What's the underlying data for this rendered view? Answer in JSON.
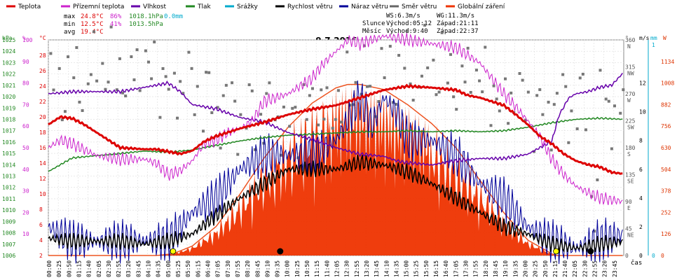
{
  "chart_data": {
    "type": "line",
    "title": "9.7.2016",
    "legend": [
      {
        "name": "Teplota",
        "color": "#dd0000"
      },
      {
        "name": "Přízemní teplota",
        "color": "#cc22cc"
      },
      {
        "name": "Vlhkost",
        "color": "#6600aa"
      },
      {
        "name": "Tlak",
        "color": "#228822"
      },
      {
        "name": "Srážky",
        "color": "#00aacc"
      },
      {
        "name": "Rychlost větru",
        "color": "#000000"
      },
      {
        "name": "Náraz větru",
        "color": "#000099"
      },
      {
        "name": "Směr větru",
        "color": "#666666"
      },
      {
        "name": "Globální záření",
        "color": "#ee3300"
      }
    ],
    "stats": {
      "max": {
        "label": "max",
        "temp": "24.8°C",
        "hum": "86%",
        "press": "1018.1hPa",
        "rain": "0.0mm"
      },
      "min": {
        "label": "min",
        "temp": "12.5°C",
        "hum": "41%",
        "press": "1013.5hPa"
      },
      "avg": {
        "label": "avg",
        "temp": "19.4°C"
      }
    },
    "info": {
      "ws": "WS:6.3m/s",
      "wg": "WG:11.3m/s",
      "slunce_label": "Slunce",
      "slunce_vychod": "Východ:05:12",
      "slunce_zapad": "Západ:21:11",
      "mesic_label": "Měsíc",
      "mesic_vychod": "Východ:9:40",
      "mesic_zapad": "Západ:22:37"
    },
    "axes": {
      "left": [
        {
          "unit": "hPa",
          "color": "#228822",
          "ticks": [
            "1025",
            "1024",
            "1023",
            "1022",
            "1021",
            "1020",
            "1019",
            "1018",
            "1017",
            "1016",
            "1015",
            "1014",
            "1013",
            "1012",
            "1011",
            "1010",
            "1009",
            "1008",
            "1007",
            "1006"
          ],
          "range": [
            1006,
            1025
          ]
        },
        {
          "unit": "%",
          "color": "#cc22cc",
          "ticks": [
            "100",
            "90",
            "80",
            "70",
            "60",
            "50",
            "40",
            "30",
            "20",
            "10"
          ],
          "range": [
            0,
            100
          ]
        },
        {
          "unit": "°C",
          "color": "#dd0000",
          "ticks": [
            "28",
            "26",
            "24",
            "22",
            "20",
            "18",
            "16",
            "14",
            "12",
            "10",
            "8",
            "6",
            "4",
            "2"
          ],
          "range": [
            2,
            30
          ]
        }
      ],
      "right": [
        {
          "unit": "°",
          "color": "#555555",
          "ticks": [
            [
              "360",
              "N"
            ],
            [
              "315",
              "NW"
            ],
            [
              "270",
              "W"
            ],
            [
              "225",
              "SW"
            ],
            [
              "180",
              "S"
            ],
            [
              "135",
              "SE"
            ],
            [
              "90",
              "E"
            ],
            [
              "45",
              "NE"
            ],
            [
              "0",
              ""
            ]
          ],
          "range": [
            0,
            360
          ]
        },
        {
          "unit": "m/s",
          "color": "#000000",
          "ticks": [
            "12",
            "10",
            "8",
            "6",
            "4",
            "2",
            "0"
          ],
          "range": [
            0,
            15
          ]
        },
        {
          "unit": "mm",
          "color": "#00aacc",
          "ticks": [
            "1",
            "0"
          ],
          "range": [
            0,
            1
          ]
        },
        {
          "unit": "W",
          "color": "#dd3300",
          "ticks": [
            "1134",
            "1008",
            "882",
            "756",
            "630",
            "504",
            "378",
            "252",
            "126",
            "0"
          ],
          "range": [
            0,
            1260
          ]
        }
      ],
      "x_label": "čas",
      "x_ticks": [
        "00:00",
        "00:25",
        "00:50",
        "01:15",
        "01:40",
        "02:05",
        "02:30",
        "02:55",
        "03:20",
        "03:45",
        "04:10",
        "04:35",
        "05:00",
        "05:25",
        "05:50",
        "06:15",
        "06:40",
        "07:05",
        "07:30",
        "07:55",
        "08:20",
        "08:45",
        "09:10",
        "09:35",
        "10:00",
        "10:25",
        "10:50",
        "11:15",
        "11:40",
        "12:05",
        "12:30",
        "12:55",
        "13:20",
        "13:45",
        "14:10",
        "14:35",
        "15:00",
        "15:25",
        "15:50",
        "16:15",
        "16:40",
        "17:05",
        "17:30",
        "17:55",
        "18:20",
        "18:45",
        "19:10",
        "19:35",
        "20:00",
        "20:25",
        "20:50",
        "21:15",
        "21:40",
        "22:05",
        "22:30",
        "22:55",
        "23:20",
        "23:45"
      ]
    },
    "series": [
      {
        "name": "Teplota",
        "unit": "°C",
        "x": [
          0,
          0.5,
          1,
          1.5,
          2,
          3,
          4,
          4.5,
          5,
          5.5,
          6,
          6.5,
          7,
          8,
          9,
          10,
          11,
          12,
          13,
          14,
          15,
          16,
          17,
          17.5,
          18,
          18.5,
          19,
          19.5,
          20,
          20.5,
          21,
          21.5,
          22,
          22.5,
          23,
          23.5,
          24
        ],
        "values": [
          19,
          20,
          19.8,
          19,
          18,
          16,
          15.8,
          15.8,
          15.5,
          15.2,
          15.6,
          16.8,
          17.5,
          18.5,
          19.3,
          20.3,
          21,
          21.5,
          22.5,
          23.5,
          24,
          23.8,
          23.5,
          22.8,
          22.5,
          22,
          21.5,
          20.3,
          19,
          17.5,
          16.5,
          15.2,
          14.3,
          13.8,
          13.5,
          12.8,
          12.6
        ]
      },
      {
        "name": "Přízemní teplota",
        "unit": "°C",
        "x": [
          0,
          0.5,
          1,
          2,
          3,
          4,
          4.5,
          5,
          5.5,
          6,
          6.5,
          7,
          7.5,
          8,
          8.5,
          9,
          10,
          11,
          11.5,
          12,
          12.5,
          13,
          14,
          15,
          16,
          17,
          17.5,
          18,
          18.5,
          19,
          19.5,
          20,
          20.5,
          21,
          21.5,
          22,
          22.5,
          23,
          23.5,
          24
        ],
        "values": [
          16,
          17,
          16.5,
          15,
          14.5,
          14.5,
          14,
          12.5,
          13,
          14.3,
          16.5,
          17,
          18,
          18.5,
          19.5,
          22,
          23,
          25,
          27,
          28.5,
          30,
          29.5,
          30.5,
          30,
          29.5,
          29,
          28,
          27,
          25,
          23,
          21.3,
          19.5,
          17.5,
          14.5,
          12.5,
          11,
          10.2,
          9.5,
          9.2,
          9
        ]
      },
      {
        "name": "Vlhkost",
        "unit": "%",
        "x": [
          0,
          1,
          2,
          3,
          4,
          5,
          5.5,
          6,
          7,
          8,
          9,
          10,
          11,
          12,
          13,
          14,
          14.5,
          15,
          16,
          17,
          18,
          19,
          19.5,
          20,
          20.5,
          21,
          21.3,
          21.7,
          22,
          22.5,
          23,
          23.5,
          24
        ],
        "values": [
          75,
          76,
          76,
          76,
          78,
          80,
          76,
          70,
          68,
          64,
          62,
          57,
          54,
          50,
          47,
          46,
          44,
          43,
          42,
          44,
          45,
          45,
          46,
          47,
          50,
          53,
          65,
          73,
          75,
          76,
          78,
          79,
          85
        ]
      },
      {
        "name": "Tlak",
        "unit": "hPa",
        "x": [
          0,
          1,
          2,
          3,
          4,
          5,
          6,
          7,
          8,
          9,
          10,
          11,
          12,
          13,
          14,
          15,
          16,
          17,
          18,
          19,
          20,
          21,
          22,
          23,
          24
        ],
        "values": [
          1013.4,
          1014.6,
          1014.8,
          1015,
          1015.2,
          1015.1,
          1015.3,
          1015.7,
          1016.1,
          1016.4,
          1016.6,
          1016.7,
          1016.8,
          1016.9,
          1016.9,
          1017.0,
          1016.9,
          1017.0,
          1016.9,
          1017.0,
          1017.3,
          1017.7,
          1018.0,
          1018.1,
          1018.0
        ]
      },
      {
        "name": "Globální záření",
        "unit": "W",
        "x": [
          4.5,
          5.2,
          6,
          7,
          8,
          9,
          10,
          11,
          12,
          12.5,
          13,
          14,
          15,
          16,
          17,
          18,
          19,
          20,
          21,
          21.2
        ],
        "values": [
          0,
          10,
          55,
          170,
          360,
          570,
          750,
          890,
          980,
          1000,
          1000,
          970,
          880,
          770,
          630,
          440,
          250,
          90,
          10,
          0
        ]
      },
      {
        "name": "Rychlost větru",
        "unit": "m/s",
        "x": [
          0,
          1,
          2,
          3,
          4,
          5,
          6,
          7,
          8,
          9,
          10,
          11,
          12,
          13,
          14,
          15,
          16,
          17,
          18,
          19,
          20,
          21,
          22,
          23,
          24
        ],
        "values": [
          1.2,
          1,
          1,
          1,
          0.8,
          1,
          1.5,
          2.8,
          4,
          5,
          6,
          6,
          6,
          6.5,
          6.3,
          5.8,
          5,
          4,
          3,
          2,
          1.5,
          0.8,
          0.5,
          0.8,
          1
        ]
      },
      {
        "name": "Náraz větru",
        "unit": "m/s",
        "x": [
          0,
          1,
          2,
          3,
          4,
          5,
          6,
          7,
          8,
          9,
          10,
          11,
          12,
          13,
          13.5,
          14,
          14.5,
          15,
          16,
          17,
          18,
          19,
          20,
          21,
          22,
          23,
          24
        ],
        "values": [
          2,
          1,
          1,
          1,
          1,
          1,
          3,
          4,
          6,
          7,
          7,
          7,
          8,
          11,
          9,
          11,
          10,
          8,
          8,
          7,
          5,
          4,
          2,
          1,
          0.5,
          1,
          1.5
        ]
      }
    ]
  }
}
